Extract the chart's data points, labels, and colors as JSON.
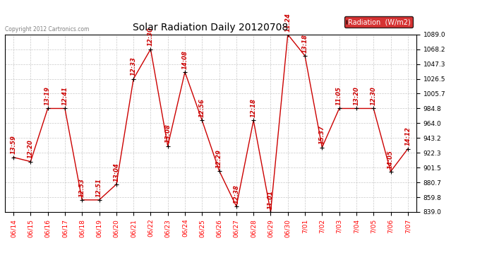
{
  "title": "Solar Radiation Daily 20120708",
  "copyright": "Copyright 2012 Cartronics.com",
  "legend_label": "Radiation  (W/m2)",
  "x_labels": [
    "06/14",
    "06/15",
    "06/16",
    "06/17",
    "06/18",
    "06/19",
    "06/20",
    "06/21",
    "06/22",
    "06/23",
    "06/24",
    "06/25",
    "06/26",
    "06/27",
    "06/28",
    "06/29",
    "06/30",
    "7/01",
    "7/02",
    "7/03",
    "7/04",
    "7/05",
    "7/06",
    "7/07"
  ],
  "y_values": [
    916.0,
    910.0,
    984.8,
    984.8,
    856.0,
    856.0,
    878.0,
    1026.5,
    1068.2,
    932.0,
    1036.0,
    968.0,
    897.0,
    847.0,
    968.0,
    839.0,
    1089.0,
    1059.0,
    930.0,
    984.8,
    984.8,
    984.8,
    896.0,
    928.0
  ],
  "point_labels": [
    "13:59",
    "12:20",
    "13:19",
    "12:41",
    "12:53",
    "12:51",
    "13:04",
    "12:33",
    "12:30",
    "13:08",
    "14:08",
    "12:56",
    "12:29",
    "12:38",
    "12:18",
    "11:01",
    "11:24",
    "13:18",
    "15:37",
    "11:05",
    "13:20",
    "12:30",
    "14:05",
    "14:12"
  ],
  "y_min": 839.0,
  "y_max": 1089.0,
  "y_ticks": [
    839.0,
    859.8,
    880.7,
    901.5,
    922.3,
    943.2,
    964.0,
    984.8,
    1005.7,
    1026.5,
    1047.3,
    1068.2,
    1089.0
  ],
  "line_color": "#cc0000",
  "bg_color": "#ffffff",
  "grid_color": "#bbbbbb",
  "title_fontsize": 10,
  "label_fontsize": 6.5,
  "point_label_fontsize": 6,
  "legend_bg": "#cc0000",
  "legend_fg": "#ffffff"
}
